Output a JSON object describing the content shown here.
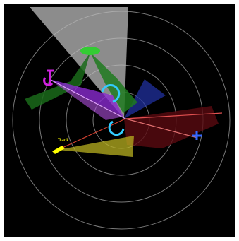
{
  "labels": {
    "track": "Track"
  }
}
